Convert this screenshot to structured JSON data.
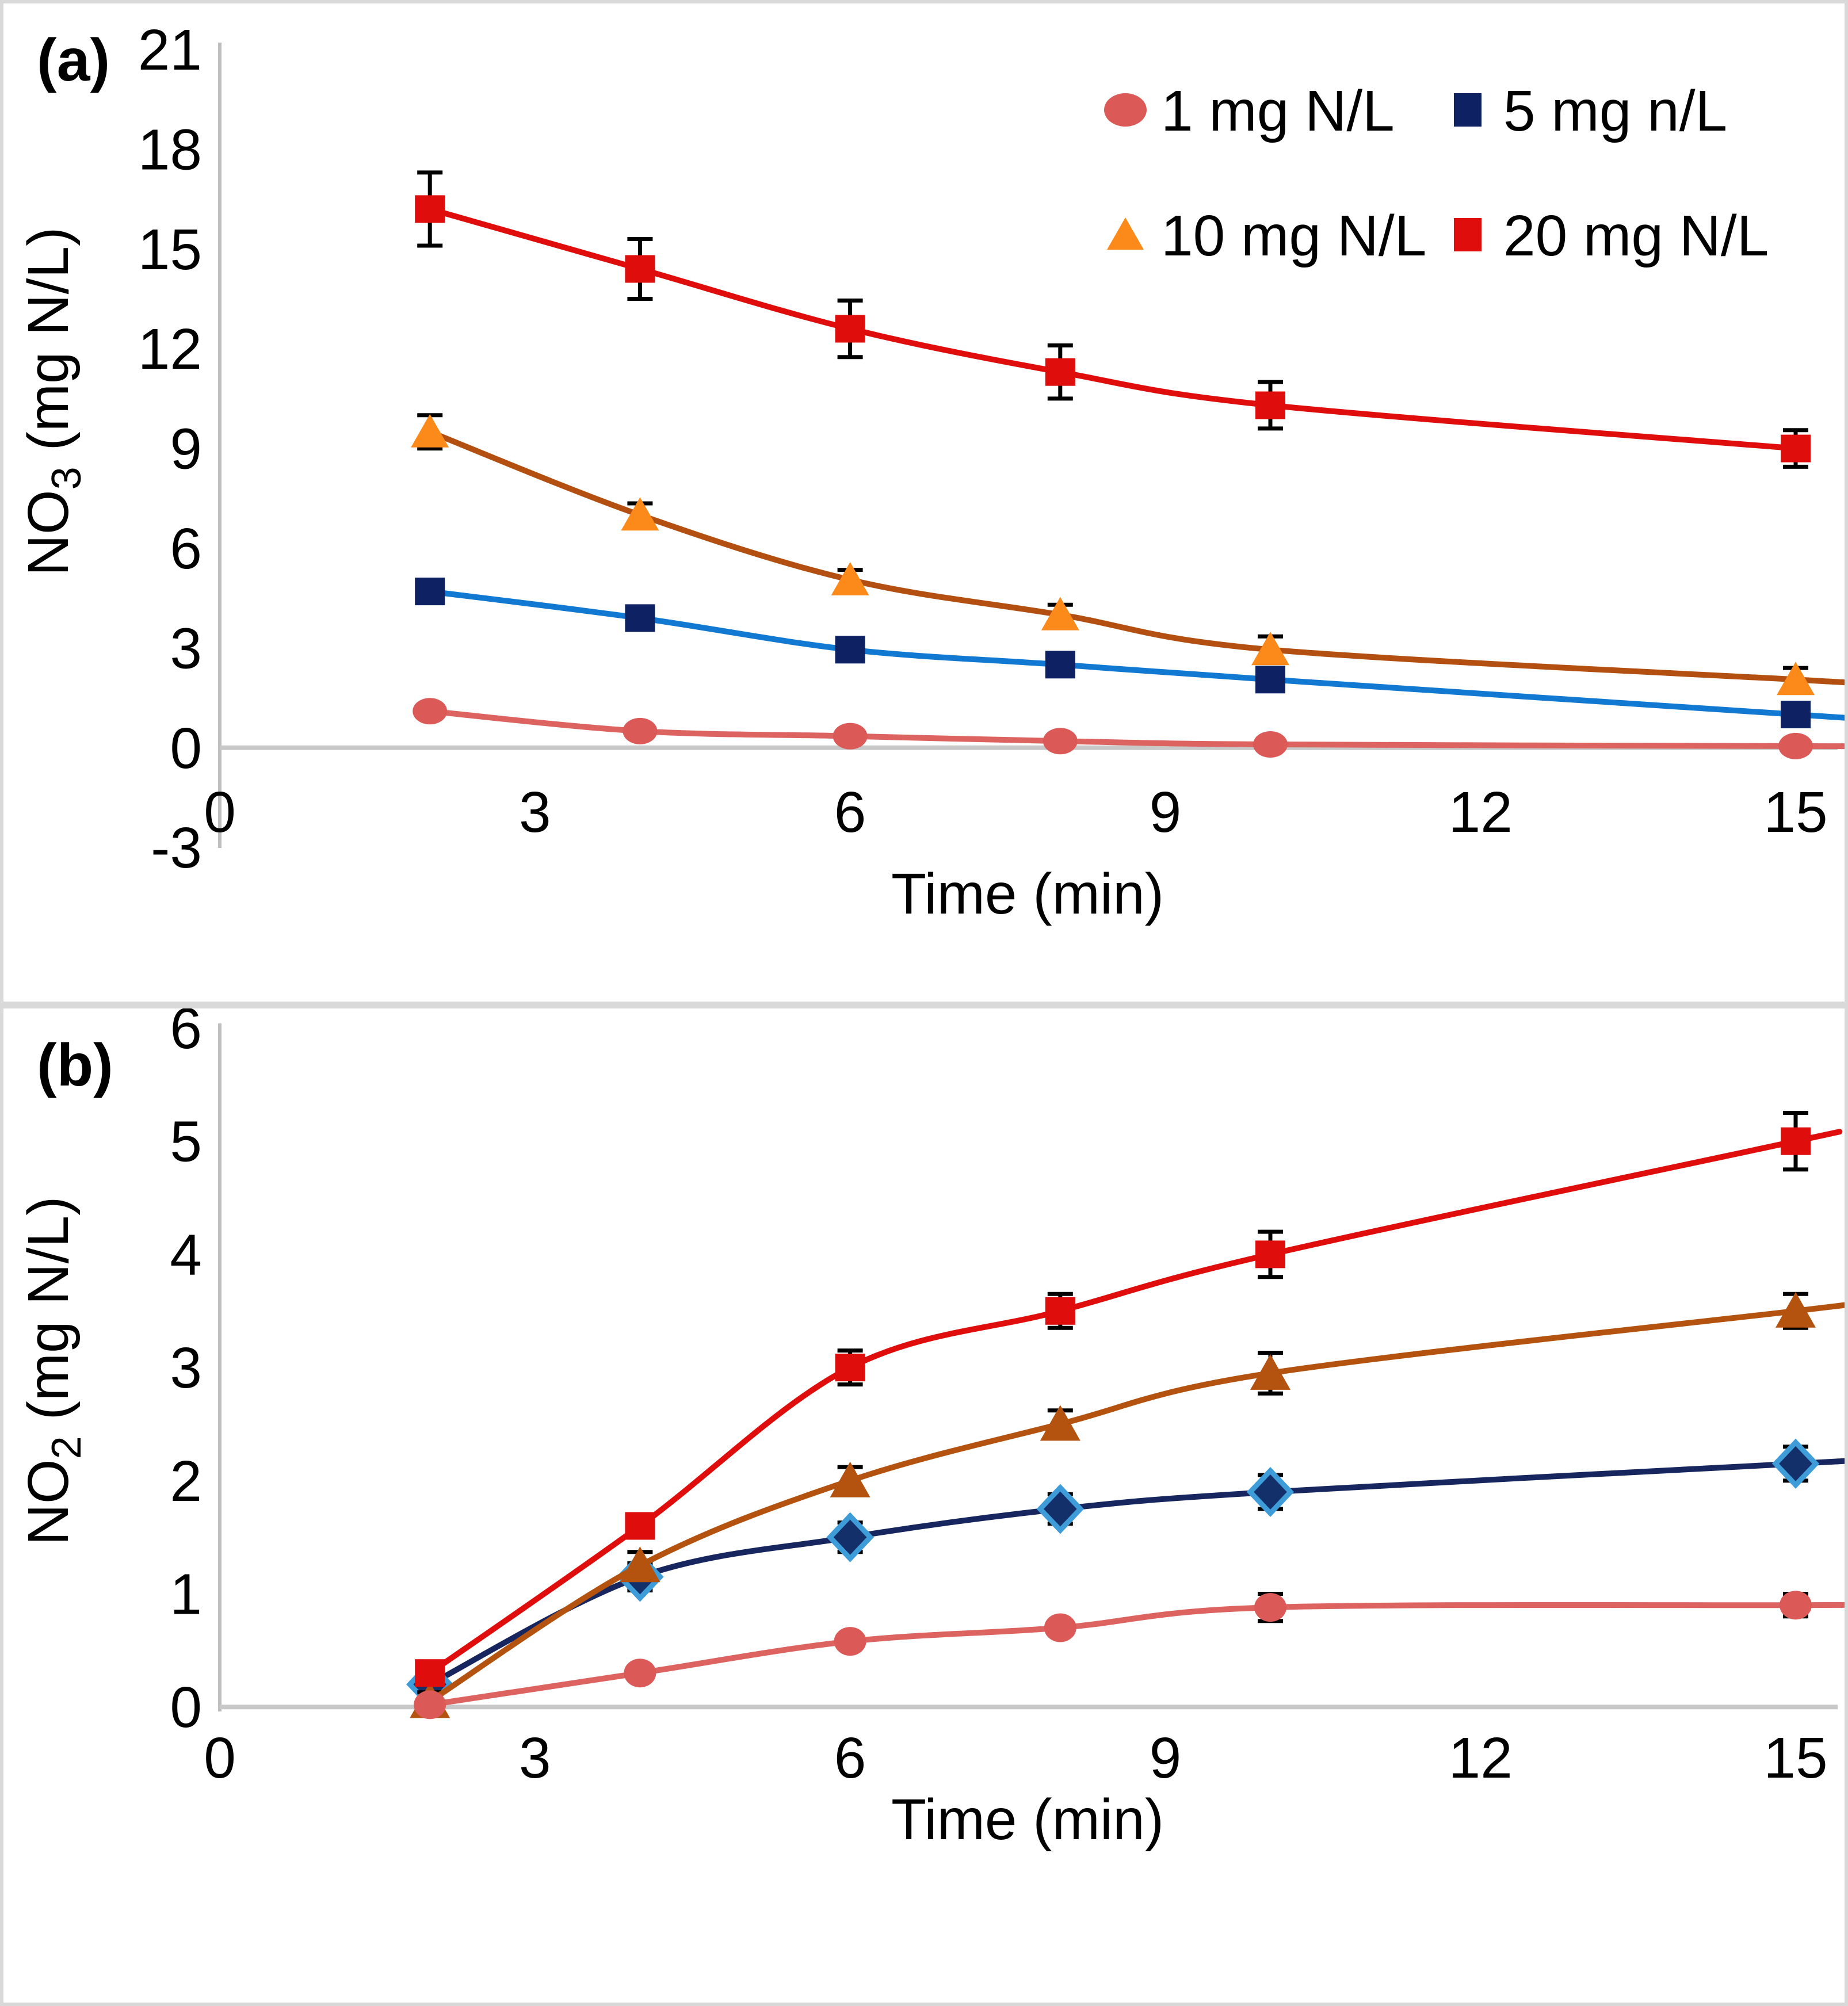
{
  "chart_data": [
    {
      "type": "line",
      "panel_label": "(a)",
      "xlabel": "Time (min)",
      "ylabel_pre": "NO",
      "ylabel_sub": "3",
      "ylabel_post": " (mg N/L)",
      "xlim": [
        0,
        15
      ],
      "ylim": [
        -3,
        21
      ],
      "x_ticks": [
        0,
        3,
        6,
        9,
        12,
        15
      ],
      "y_ticks": [
        21,
        18,
        15,
        12,
        9,
        6,
        3,
        0,
        -3
      ],
      "grid": "zero-line-only",
      "legend_position": "top-right",
      "legend": {
        "items": [
          {
            "label": "1 mg N/L",
            "marker": "circle",
            "color": "#DB5A57"
          },
          {
            "label": "5 mg n/L",
            "marker": "square",
            "color": "#0E2163"
          },
          {
            "label": "10 mg N/L",
            "marker": "triangle",
            "color": "#FB8A1A"
          },
          {
            "label": "20 mg N/L",
            "marker": "square",
            "color": "#E00D0D"
          }
        ]
      },
      "x": [
        2,
        4,
        6,
        8,
        10,
        15
      ],
      "series": [
        {
          "name": "5 mg n/L",
          "marker": "square",
          "color": "#0E2163",
          "line_color": "#1179D1",
          "y": [
            4.7,
            3.9,
            2.95,
            2.5,
            2.05,
            1.0
          ],
          "err": [
            0.15,
            0.15,
            0.2,
            0.2,
            0.15,
            0.2
          ],
          "ext_right": 0.4
        },
        {
          "name": "10 mg N/L",
          "marker": "triangle",
          "color": "#FB8A1A",
          "line_color": "#B34F10",
          "y": [
            9.5,
            7.0,
            5.05,
            4.0,
            2.95,
            2.05
          ],
          "err": [
            0.5,
            0.35,
            0.3,
            0.3,
            0.4,
            0.35
          ],
          "ext_right": 0.4
        },
        {
          "name": "1 mg N/L",
          "marker": "circle",
          "color": "#DB5A57",
          "line_color": "#DC6360",
          "y": [
            1.1,
            0.5,
            0.35,
            0.2,
            0.1,
            0.05
          ],
          "err": [
            0,
            0,
            0,
            0,
            0,
            0
          ],
          "ext_right": 0.4
        },
        {
          "name": "20 mg N/L",
          "marker": "square",
          "color": "#E00D0D",
          "line_color": "#E00D0D",
          "y": [
            16.2,
            14.4,
            12.6,
            11.3,
            10.3,
            9.0
          ],
          "err": [
            1.1,
            0.9,
            0.85,
            0.8,
            0.7,
            0.55
          ],
          "ext_right": 0
        }
      ]
    },
    {
      "type": "line",
      "panel_label": "(b)",
      "xlabel": "Time (min)",
      "ylabel_pre": "NO",
      "ylabel_sub": "2",
      "ylabel_post": " (mg N/L)",
      "xlim": [
        0,
        15
      ],
      "ylim": [
        0,
        6
      ],
      "x_ticks": [
        0,
        3,
        6,
        9,
        12,
        15
      ],
      "y_ticks": [
        6,
        5,
        4,
        3,
        2,
        1,
        0
      ],
      "grid": "zero-line-only",
      "legend_position": "none",
      "x": [
        2,
        4,
        6,
        8,
        10,
        15
      ],
      "series": [
        {
          "name": "5 mg n/L",
          "marker": "diamond",
          "color": "#14306B",
          "marker_stroke": "#3E9CD9",
          "line_color": "#17265E",
          "y": [
            0.2,
            1.15,
            1.5,
            1.75,
            1.9,
            2.15
          ],
          "err": [
            0.1,
            0.12,
            0.13,
            0.13,
            0.15,
            0.15
          ],
          "ext_right": 0.4
        },
        {
          "name": "10 mg N/L",
          "marker": "triangle",
          "color": "#B4530F",
          "line_color": "#B4530F",
          "y": [
            0.05,
            1.25,
            2.0,
            2.5,
            2.95,
            3.5
          ],
          "err": [
            0.08,
            0.12,
            0.12,
            0.12,
            0.18,
            0.15
          ],
          "ext_right": 0.4
        },
        {
          "name": "1 mg N/L",
          "marker": "circle",
          "color": "#DB5A57",
          "line_color": "#DC6360",
          "y": [
            0.02,
            0.3,
            0.58,
            0.7,
            0.88,
            0.9
          ],
          "err": [
            0,
            0,
            0,
            0,
            0.12,
            0.1
          ],
          "ext_right": 0.4
        },
        {
          "name": "20 mg N/L",
          "marker": "square",
          "color": "#E00D0D",
          "line_color": "#E00D0D",
          "y": [
            0.3,
            1.6,
            3.0,
            3.5,
            4.0,
            5.0
          ],
          "err": [
            0.08,
            0.1,
            0.15,
            0.15,
            0.2,
            0.25
          ],
          "ext_right": 0.15
        }
      ]
    }
  ],
  "styles": {
    "axis_line_color": "#BFBFBF",
    "zero_line_color": "#C8C8C8",
    "error_bar_color": "#000000",
    "frame_color": "#D9D9D9"
  }
}
